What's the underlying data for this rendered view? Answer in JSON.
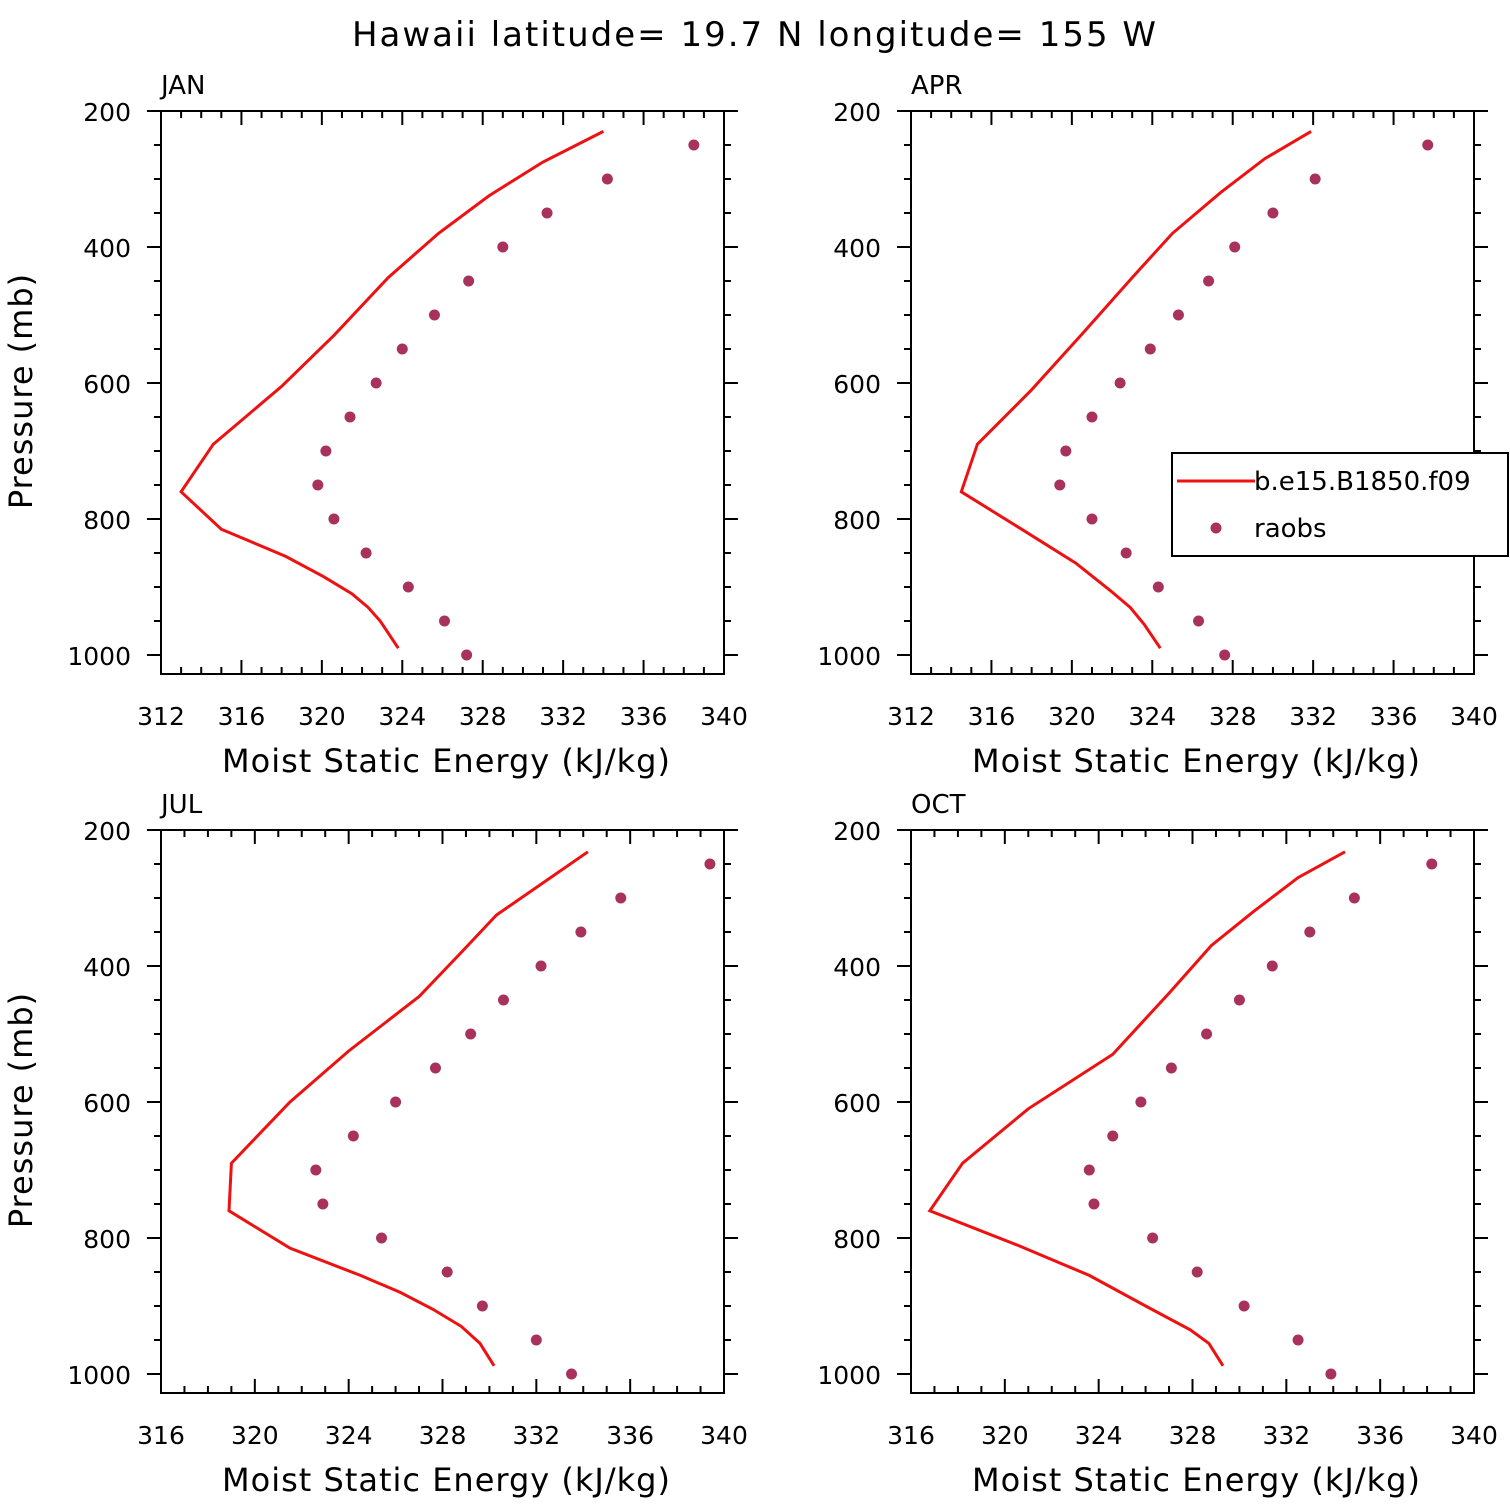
{
  "title": "Hawaii  latitude= 19.7 N longitude= 155 W",
  "colors": {
    "model": "#ee1111",
    "obs": "#a8325c",
    "axes": "#000000"
  },
  "legend": {
    "model_label": "b.e15.B1850.f09",
    "obs_label": "raobs"
  },
  "chart_data": [
    {
      "type": "line",
      "title": "JAN",
      "xlabel": "Moist Static Energy (kJ/kg)",
      "ylabel": "Pressure (mb)",
      "xlim": [
        312,
        340
      ],
      "ylim": [
        1000,
        200
      ],
      "xticks": [
        "312",
        "316",
        "320",
        "324",
        "328",
        "332",
        "336",
        "340"
      ],
      "yticks": [
        "200",
        "400",
        "600",
        "800",
        "1000"
      ],
      "series": [
        {
          "name": "b.e15.B1850.f09",
          "kind": "line",
          "x": [
            334.0,
            331.0,
            328.3,
            325.8,
            323.3,
            320.6,
            318.0,
            314.6,
            313.0,
            315.0,
            318.2,
            320.1,
            321.5,
            322.3,
            322.9,
            323.8
          ],
          "y": [
            230,
            275,
            325,
            380,
            445,
            530,
            605,
            690,
            760,
            815,
            855,
            885,
            910,
            930,
            950,
            990
          ]
        },
        {
          "name": "raobs",
          "kind": "scatter",
          "x": [
            338.5,
            334.2,
            331.2,
            329.0,
            327.3,
            325.6,
            324.0,
            322.7,
            321.4,
            320.2,
            319.8,
            320.6,
            322.2,
            324.3,
            326.1,
            327.2
          ],
          "y": [
            250,
            300,
            350,
            400,
            450,
            500,
            550,
            600,
            650,
            700,
            750,
            800,
            850,
            900,
            950,
            1000
          ]
        }
      ]
    },
    {
      "type": "line",
      "title": "APR",
      "xlabel": "Moist Static Energy (kJ/kg)",
      "ylabel": "",
      "xlim": [
        312,
        340
      ],
      "ylim": [
        1000,
        200
      ],
      "xticks": [
        "312",
        "316",
        "320",
        "324",
        "328",
        "332",
        "336",
        "340"
      ],
      "yticks": [
        "200",
        "400",
        "600",
        "800",
        "1000"
      ],
      "series": [
        {
          "name": "b.e15.B1850.f09",
          "kind": "line",
          "x": [
            331.9,
            329.6,
            327.4,
            325.0,
            323.0,
            320.6,
            318.0,
            315.3,
            314.5,
            317.5,
            320.2,
            321.9,
            322.9,
            323.6,
            324.4
          ],
          "y": [
            230,
            270,
            320,
            380,
            445,
            525,
            610,
            690,
            760,
            815,
            865,
            905,
            930,
            955,
            990
          ]
        },
        {
          "name": "raobs",
          "kind": "scatter",
          "x": [
            337.7,
            332.1,
            330.0,
            328.1,
            326.8,
            325.3,
            323.9,
            322.4,
            321.0,
            319.7,
            319.4,
            321.0,
            322.7,
            324.3,
            326.3,
            327.6
          ],
          "y": [
            250,
            300,
            350,
            400,
            450,
            500,
            550,
            600,
            650,
            700,
            750,
            800,
            850,
            900,
            950,
            1000
          ]
        }
      ]
    },
    {
      "type": "line",
      "title": "JUL",
      "xlabel": "Moist Static Energy (kJ/kg)",
      "ylabel": "Pressure (mb)",
      "xlim": [
        316,
        340
      ],
      "ylim": [
        1000,
        200
      ],
      "xticks": [
        "316",
        "320",
        "324",
        "328",
        "332",
        "336",
        "340"
      ],
      "yticks": [
        "200",
        "400",
        "600",
        "800",
        "1000"
      ],
      "series": [
        {
          "name": "b.e15.B1850.f09",
          "kind": "line",
          "x": [
            334.2,
            332.4,
            330.3,
            328.8,
            327.0,
            324.0,
            321.5,
            319.0,
            318.9,
            321.5,
            324.5,
            326.2,
            327.6,
            328.8,
            329.6,
            330.2
          ],
          "y": [
            232,
            275,
            325,
            380,
            445,
            525,
            600,
            690,
            760,
            815,
            855,
            880,
            905,
            930,
            955,
            988
          ]
        },
        {
          "name": "raobs",
          "kind": "scatter",
          "x": [
            339.4,
            335.6,
            333.9,
            332.2,
            330.6,
            329.2,
            327.7,
            326.0,
            324.2,
            322.6,
            322.9,
            325.4,
            328.2,
            329.7,
            332.0,
            333.5
          ],
          "y": [
            250,
            300,
            350,
            400,
            450,
            500,
            550,
            600,
            650,
            700,
            750,
            800,
            850,
            900,
            950,
            1000
          ]
        }
      ]
    },
    {
      "type": "line",
      "title": "OCT",
      "xlabel": "Moist Static Energy (kJ/kg)",
      "ylabel": "",
      "xlim": [
        316,
        340
      ],
      "ylim": [
        1000,
        200
      ],
      "xticks": [
        "316",
        "320",
        "324",
        "328",
        "332",
        "336",
        "340"
      ],
      "yticks": [
        "200",
        "400",
        "600",
        "800",
        "1000"
      ],
      "series": [
        {
          "name": "b.e15.B1850.f09",
          "kind": "line",
          "x": [
            334.5,
            332.5,
            330.6,
            328.8,
            327.0,
            324.6,
            321.0,
            318.2,
            316.8,
            320.5,
            323.6,
            326.0,
            327.9,
            328.7,
            329.3
          ],
          "y": [
            232,
            270,
            320,
            370,
            440,
            530,
            610,
            690,
            760,
            810,
            855,
            900,
            935,
            955,
            988
          ]
        },
        {
          "name": "raobs",
          "kind": "scatter",
          "x": [
            338.2,
            334.9,
            333.0,
            331.4,
            330.0,
            328.6,
            327.1,
            325.8,
            324.6,
            323.6,
            323.8,
            326.3,
            328.2,
            330.2,
            332.5,
            333.9
          ],
          "y": [
            250,
            300,
            350,
            400,
            450,
            500,
            550,
            600,
            650,
            700,
            750,
            800,
            850,
            900,
            950,
            1000
          ]
        }
      ]
    }
  ]
}
